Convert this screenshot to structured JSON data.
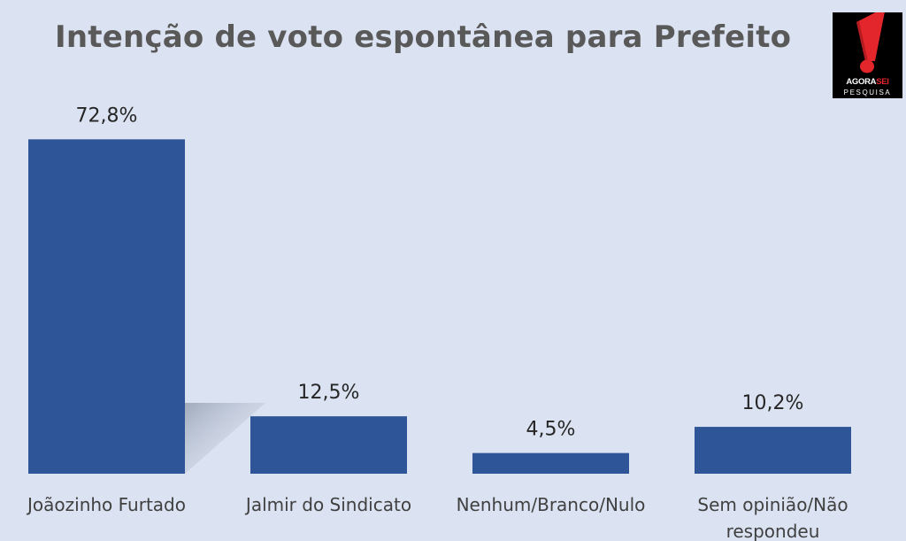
{
  "chart_data": {
    "type": "bar",
    "title": "Intenção de voto espontânea para Prefeito",
    "categories": [
      [
        "Joãozinho Furtado"
      ],
      [
        "Jalmir do Sindicato"
      ],
      [
        "Nenhum/Branco/Nulo"
      ],
      [
        "Sem opinião/Não",
        "respondeu"
      ]
    ],
    "values": [
      72.8,
      12.5,
      4.5,
      10.2
    ],
    "data_labels": [
      "72,8%",
      "12,5%",
      "4,5%",
      "10,2%"
    ],
    "ylim": [
      0,
      80
    ],
    "grid": false,
    "legend": "none",
    "bar_color": "#2e5597"
  },
  "logo": {
    "brand_main": "AGORA",
    "brand_accent": "SEI",
    "subtitle": "PESQUISA",
    "accent_color": "#e3262b"
  }
}
